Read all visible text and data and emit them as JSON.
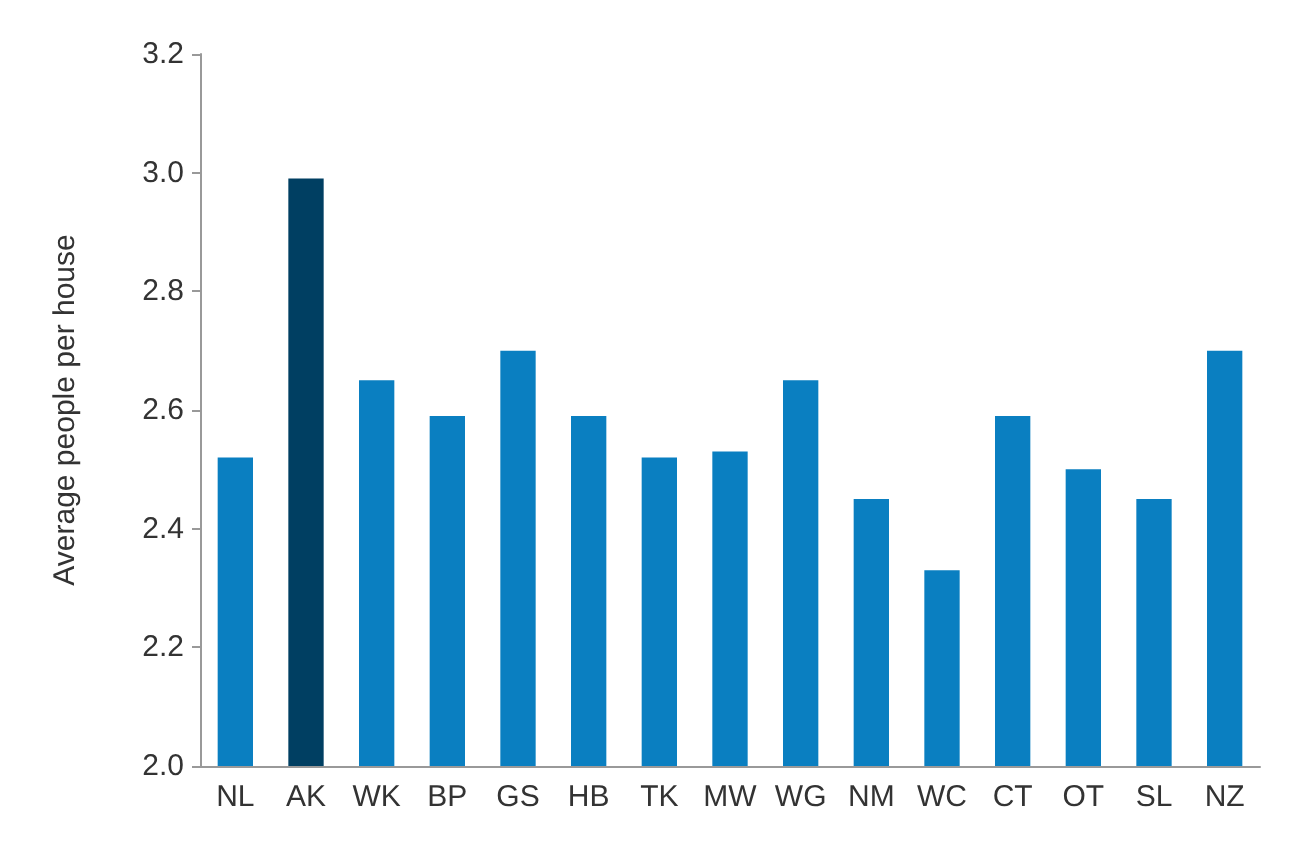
{
  "chart_data": {
    "type": "bar",
    "ylabel": "Average people per house",
    "categories": [
      "NL",
      "AK",
      "WK",
      "BP",
      "GS",
      "HB",
      "TK",
      "MW",
      "WG",
      "NM",
      "WC",
      "CT",
      "OT",
      "SL",
      "NZ"
    ],
    "values": [
      2.52,
      2.99,
      2.65,
      2.59,
      2.7,
      2.59,
      2.52,
      2.53,
      2.65,
      2.45,
      2.33,
      2.59,
      2.5,
      2.45,
      2.7
    ],
    "colors": [
      "#0a7fc1",
      "#003f62",
      "#0a7fc1",
      "#0a7fc1",
      "#0a7fc1",
      "#0a7fc1",
      "#0a7fc1",
      "#0a7fc1",
      "#0a7fc1",
      "#0a7fc1",
      "#0a7fc1",
      "#0a7fc1",
      "#0a7fc1",
      "#0a7fc1",
      "#0a7fc1"
    ],
    "ylim": [
      2.0,
      3.2
    ],
    "yticks": [
      {
        "value": 2,
        "label": "2.0"
      },
      2.2,
      2.4,
      2.6,
      2.8,
      {
        "value": 3,
        "label": "3.0"
      },
      3.2
    ],
    "grid": false
  }
}
